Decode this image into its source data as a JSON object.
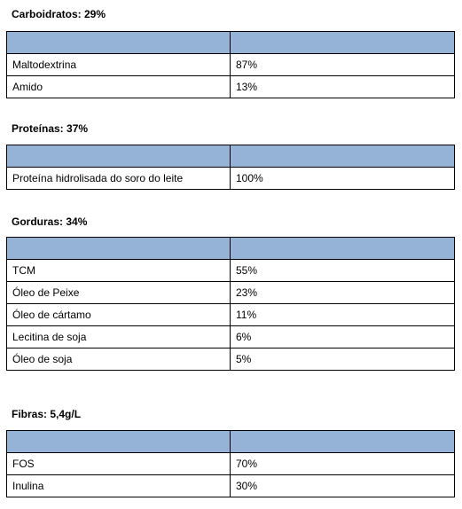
{
  "sections": [
    {
      "title": "Carboidratos: 29%",
      "rows": [
        [
          "Maltodextrina",
          "87%"
        ],
        [
          "Amido",
          "13%"
        ]
      ]
    },
    {
      "title": "Proteínas: 37%",
      "rows": [
        [
          "Proteína hidrolisada do soro do leite",
          "100%"
        ]
      ]
    },
    {
      "title": "Gorduras: 34%",
      "rows": [
        [
          "TCM",
          "55%"
        ],
        [
          "Óleo de Peixe",
          "23%"
        ],
        [
          "Óleo de cártamo",
          "11%"
        ],
        [
          "Lecitina de soja",
          "6%"
        ],
        [
          "Óleo de soja",
          "5%"
        ]
      ]
    },
    {
      "title": "Fibras: 5,4g/L",
      "rows": [
        [
          "FOS",
          "70%"
        ],
        [
          "Inulina",
          "30%"
        ]
      ]
    }
  ]
}
